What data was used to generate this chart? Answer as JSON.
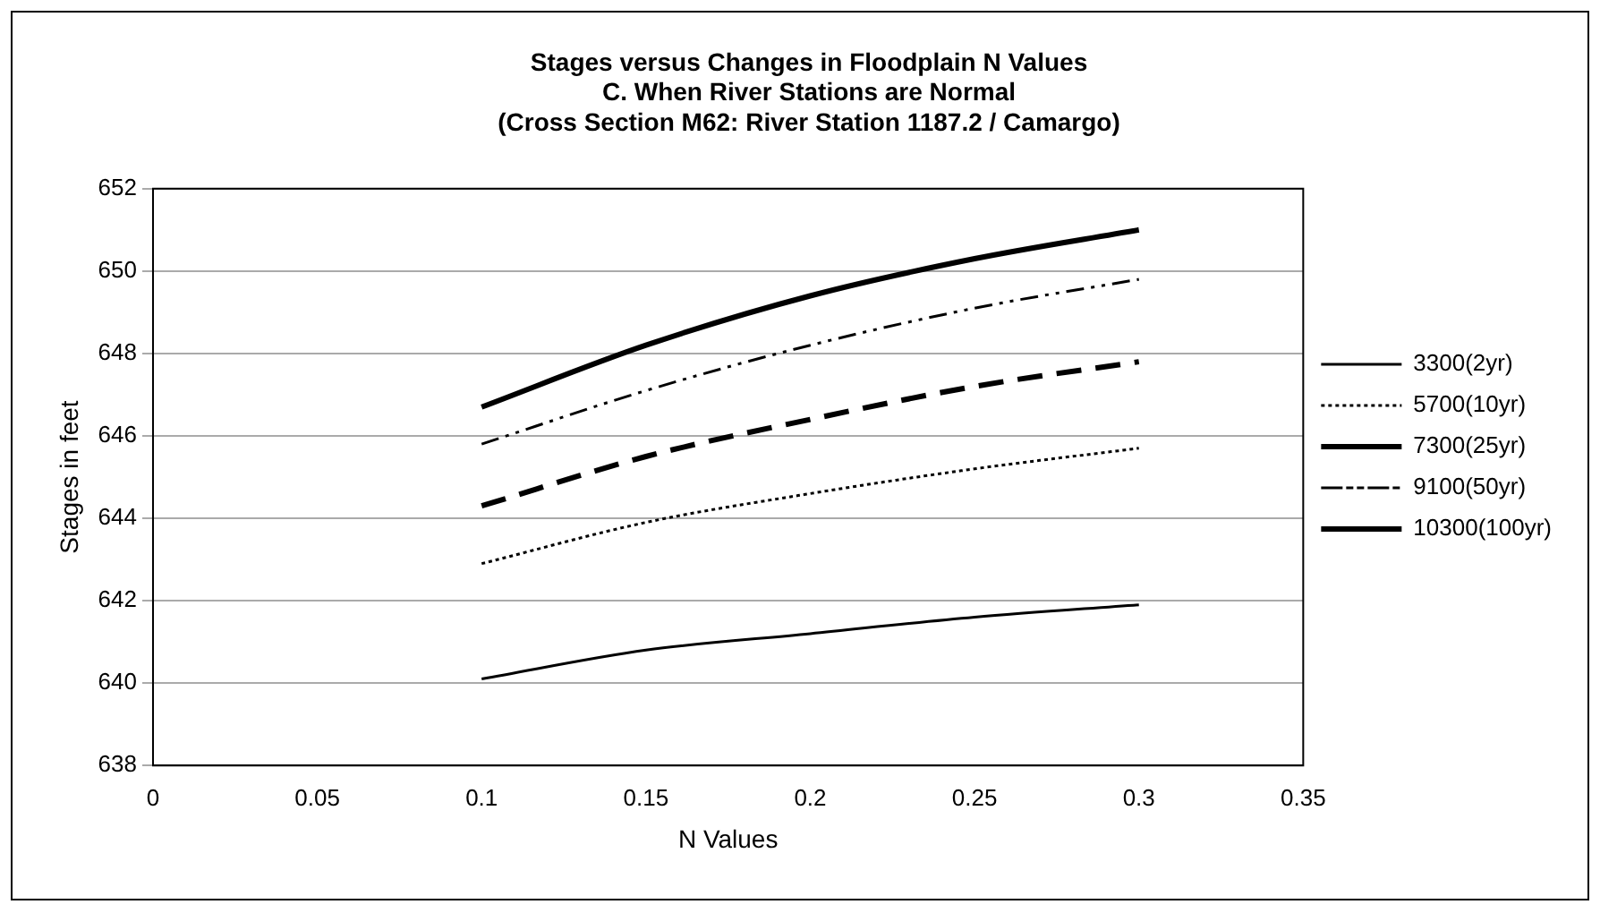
{
  "chart_data": {
    "type": "line",
    "title": "Stages versus Changes in Floodplain N Values",
    "subtitle": [
      "C. When River Stations are Normal",
      "(Cross Section M62: River Station 1187.2 / Camargo)"
    ],
    "xlabel": "N Values",
    "ylabel": "Stages in feet",
    "x": [
      0.1,
      0.15,
      0.2,
      0.25,
      0.3
    ],
    "series": [
      {
        "name": "3300(2yr)",
        "color": "#000000",
        "line_style": "solid",
        "values": [
          640.1,
          640.8,
          641.2,
          641.6,
          641.9
        ]
      },
      {
        "name": "5700(10yr)",
        "color": "#000000",
        "line_style": "dotted",
        "values": [
          642.9,
          643.9,
          644.6,
          645.2,
          645.7
        ]
      },
      {
        "name": "7300(25yr)",
        "color": "#000000",
        "line_style": "dashed",
        "values": [
          644.3,
          645.5,
          646.4,
          647.2,
          647.8
        ]
      },
      {
        "name": "9100(50yr)",
        "color": "#000000",
        "line_style": "dashdot",
        "values": [
          645.8,
          647.1,
          648.2,
          649.1,
          649.8
        ]
      },
      {
        "name": "10300(100yr)",
        "color": "#000000",
        "line_style": "solid",
        "values": [
          646.7,
          648.2,
          649.4,
          650.3,
          651.0
        ]
      }
    ],
    "xlim": [
      0,
      0.35
    ],
    "xticks": [
      0,
      0.05,
      0.1,
      0.15,
      0.2,
      0.25,
      0.3,
      0.35
    ],
    "ylim": [
      638,
      652
    ],
    "yticks": [
      638,
      640,
      642,
      644,
      646,
      648,
      650,
      652
    ],
    "grid": "y",
    "legend": "right",
    "marker": "none"
  }
}
